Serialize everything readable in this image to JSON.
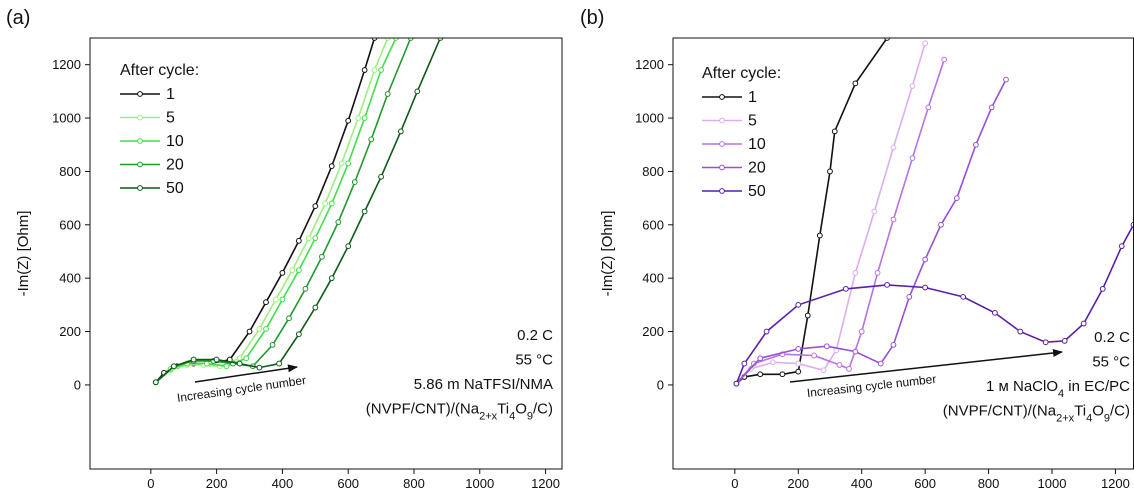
{
  "chart_data": [
    {
      "type": "line",
      "panel_label": "(a)",
      "x_label": "Re(Z) [Ohm]",
      "y_label": "-Im(Z) [Ohm]",
      "xlim": [
        -185,
        1250
      ],
      "ylim": [
        -315,
        1300
      ],
      "xticks": [
        0,
        200,
        400,
        600,
        800,
        1000,
        1200
      ],
      "yticks": [
        0,
        200,
        400,
        600,
        800,
        1000,
        1200
      ],
      "legend_title": "After cycle:",
      "series": [
        {
          "name": "1",
          "color": "#111111",
          "x": [
            15,
            40,
            80,
            130,
            180,
            240,
            300,
            350,
            400,
            450,
            500,
            550,
            600,
            650,
            680
          ],
          "values": [
            10,
            45,
            70,
            80,
            80,
            95,
            200,
            310,
            420,
            540,
            670,
            820,
            990,
            1180,
            1300
          ]
        },
        {
          "name": "5",
          "color": "#9df07f",
          "x": [
            15,
            60,
            110,
            160,
            210,
            270,
            330,
            380,
            430,
            480,
            530,
            580,
            630,
            680,
            720
          ],
          "values": [
            10,
            55,
            75,
            75,
            70,
            100,
            210,
            320,
            430,
            550,
            680,
            830,
            1000,
            1180,
            1300
          ]
        },
        {
          "name": "10",
          "color": "#3fe04a",
          "x": [
            15,
            60,
            110,
            170,
            230,
            290,
            350,
            400,
            450,
            500,
            550,
            600,
            650,
            700,
            745
          ],
          "values": [
            10,
            60,
            80,
            80,
            70,
            100,
            210,
            320,
            430,
            550,
            680,
            830,
            1000,
            1180,
            1300
          ]
        },
        {
          "name": "20",
          "color": "#1e9a2c",
          "x": [
            15,
            70,
            130,
            190,
            250,
            310,
            370,
            420,
            470,
            520,
            570,
            620,
            670,
            720,
            790
          ],
          "values": [
            10,
            70,
            90,
            90,
            80,
            70,
            150,
            250,
            360,
            480,
            610,
            760,
            920,
            1090,
            1300
          ]
        },
        {
          "name": "50",
          "color": "#0e5a18",
          "x": [
            15,
            70,
            130,
            200,
            270,
            330,
            390,
            450,
            500,
            550,
            600,
            650,
            700,
            760,
            810,
            880
          ],
          "values": [
            10,
            70,
            95,
            95,
            80,
            65,
            80,
            190,
            290,
            400,
            520,
            650,
            780,
            950,
            1100,
            1300
          ]
        }
      ],
      "annotations": [
        [
          {
            "text": "0.2 C"
          }
        ],
        [
          {
            "text": "55 °C"
          }
        ],
        [
          {
            "text": "5.86 m NaTFSI/NMA"
          }
        ],
        [
          {
            "text": "(NVPF/CNT)/(Na"
          },
          {
            "text": "2+x",
            "sub": true
          },
          {
            "text": "Ti"
          },
          {
            "text": "4",
            "sub": true
          },
          {
            "text": "O"
          },
          {
            "text": "9",
            "sub": true
          },
          {
            "text": "/C)"
          }
        ]
      ],
      "arrow_label": "Increasing cycle number"
    },
    {
      "type": "line",
      "panel_label": "(b)",
      "x_label": "Re(Z) [Ohm]",
      "y_label": "-Im(Z) [Ohm]",
      "xlim": [
        -195,
        1257
      ],
      "ylim": [
        -315,
        1300
      ],
      "xticks": [
        0,
        200,
        400,
        600,
        800,
        1000,
        1200
      ],
      "yticks": [
        0,
        200,
        400,
        600,
        800,
        1000,
        1200
      ],
      "legend_title": "After cycle:",
      "series": [
        {
          "name": "1",
          "color": "#111111",
          "x": [
            5,
            30,
            80,
            150,
            200,
            230,
            268,
            300,
            315,
            380,
            480
          ],
          "values": [
            5,
            30,
            40,
            40,
            50,
            260,
            560,
            800,
            950,
            1130,
            1300
          ]
        },
        {
          "name": "5",
          "color": "#dcaef0",
          "x": [
            5,
            50,
            120,
            200,
            280,
            320,
            380,
            440,
            500,
            560,
            600
          ],
          "values": [
            5,
            60,
            85,
            80,
            55,
            130,
            420,
            650,
            890,
            1120,
            1280
          ]
        },
        {
          "name": "10",
          "color": "#b872e6",
          "x": [
            5,
            60,
            150,
            250,
            330,
            360,
            400,
            450,
            500,
            560,
            610,
            660
          ],
          "values": [
            5,
            80,
            115,
            110,
            75,
            60,
            200,
            420,
            620,
            850,
            1040,
            1219
          ]
        },
        {
          "name": "20",
          "color": "#9a4fd8",
          "x": [
            5,
            80,
            200,
            290,
            380,
            460,
            500,
            550,
            600,
            650,
            700,
            760,
            810,
            855
          ],
          "values": [
            5,
            100,
            135,
            145,
            125,
            80,
            150,
            330,
            470,
            600,
            700,
            900,
            1040,
            1144
          ]
        },
        {
          "name": "50",
          "color": "#5a1fa8",
          "x": [
            5,
            30,
            100,
            200,
            350,
            480,
            600,
            720,
            820,
            900,
            980,
            1040,
            1100,
            1160,
            1220,
            1257
          ],
          "values": [
            5,
            80,
            200,
            300,
            360,
            375,
            365,
            330,
            270,
            200,
            160,
            165,
            230,
            360,
            520,
            600
          ]
        }
      ],
      "annotations": [
        [
          {
            "text": "0.2 C"
          }
        ],
        [
          {
            "text": "55 °C"
          }
        ],
        [
          {
            "text": "1 м NaClO"
          },
          {
            "text": "4",
            "sub": true
          },
          {
            "text": " in EC/PC"
          }
        ],
        [
          {
            "text": "(NVPF/CNT)/(Na"
          },
          {
            "text": "2+x",
            "sub": true
          },
          {
            "text": "Ti"
          },
          {
            "text": "4",
            "sub": true
          },
          {
            "text": "O"
          },
          {
            "text": "9",
            "sub": true
          },
          {
            "text": "/C)"
          }
        ]
      ],
      "arrow_label": "Increasing cycle number"
    }
  ]
}
